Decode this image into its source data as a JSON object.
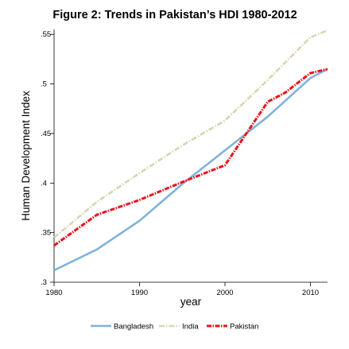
{
  "chart_data": {
    "type": "line",
    "title": "Figure 2: Trends in Pakistan’s HDI 1980-2012",
    "xlabel": "year",
    "ylabel": "Human Development Index",
    "xlim": [
      1980,
      2012
    ],
    "ylim": [
      0.3,
      0.555
    ],
    "x_ticks": [
      1980,
      1990,
      2000,
      2010
    ],
    "y_ticks": [
      ".3",
      ".35",
      ".4",
      ".45",
      ".5",
      ".55"
    ],
    "y_tick_values": [
      0.3,
      0.35,
      0.4,
      0.45,
      0.5,
      0.55
    ],
    "grid": false,
    "legend_position": "bottom",
    "series": [
      {
        "name": "Bangladesh",
        "color": "#7fb3da",
        "style": "solid",
        "x": [
          1980,
          1985,
          1990,
          1995,
          2000,
          2005,
          2010,
          2012
        ],
        "values": [
          0.312,
          0.333,
          0.362,
          0.399,
          0.433,
          0.467,
          0.506,
          0.515
        ]
      },
      {
        "name": "India",
        "color": "#d9d5b3",
        "style": "dash-dot",
        "x": [
          1980,
          1985,
          1990,
          1995,
          2000,
          2005,
          2010,
          2012
        ],
        "values": [
          0.345,
          0.381,
          0.41,
          0.438,
          0.463,
          0.504,
          0.547,
          0.554
        ]
      },
      {
        "name": "Pakistan",
        "color": "#e8141c",
        "style": "dash-dot-thick",
        "x": [
          1980,
          1985,
          1990,
          1995,
          2000,
          2005,
          2007,
          2010,
          2011,
          2012
        ],
        "values": [
          0.337,
          0.368,
          0.383,
          0.401,
          0.418,
          0.482,
          0.491,
          0.511,
          0.513,
          0.515
        ]
      }
    ]
  }
}
